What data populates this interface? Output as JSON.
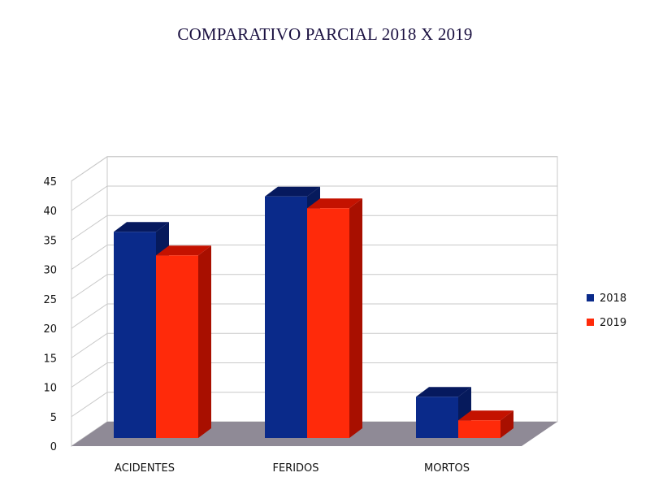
{
  "chart_data": {
    "type": "bar",
    "title": "COMPARATIVO PARCIAL 2018 X 2019",
    "categories": [
      "ACIDENTES",
      "FERIDOS",
      "MORTOS"
    ],
    "series": [
      {
        "name": "2018",
        "values": [
          35,
          41,
          7
        ],
        "color": "#0a2a8a",
        "top_color": "#06195e",
        "side_color": "#061a5c"
      },
      {
        "name": "2019",
        "values": [
          31,
          39,
          3
        ],
        "color": "#ff2a0a",
        "top_color": "#c41200",
        "side_color": "#a80f00"
      }
    ],
    "y_ticks": [
      "0",
      "5",
      "10",
      "15",
      "20",
      "25",
      "30",
      "35",
      "40",
      "45"
    ],
    "ylim": [
      0,
      45
    ],
    "grid": true,
    "legend_position": "right",
    "floor_color": "#8f8a96",
    "grid_color": "#c9c9c9"
  }
}
